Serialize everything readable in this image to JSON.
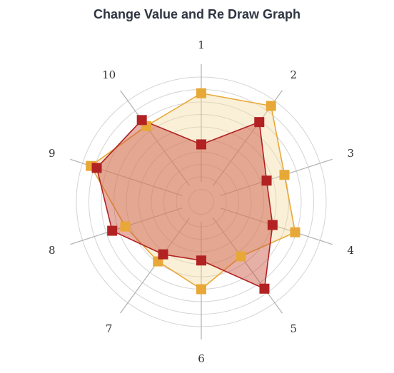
{
  "chart_data": {
    "type": "radar",
    "title": "Change Value and Re Draw Graph",
    "categories": [
      "1",
      "2",
      "3",
      "4",
      "5",
      "6",
      "7",
      "8",
      "9",
      "10"
    ],
    "rmax": 10,
    "grid": true,
    "rings": 10,
    "series": [
      {
        "values": [
          8.7,
          9.5,
          7.0,
          7.9,
          5.4,
          7.0,
          5.9,
          6.4,
          9.3,
          7.5
        ],
        "color": "#e8a838",
        "fill": "#f3d69c"
      },
      {
        "values": [
          4.6,
          7.9,
          5.5,
          6.0,
          8.6,
          4.7,
          5.2,
          7.5,
          8.8,
          8.1
        ],
        "color": "#b22222",
        "fill": "#c9503c"
      }
    ]
  }
}
